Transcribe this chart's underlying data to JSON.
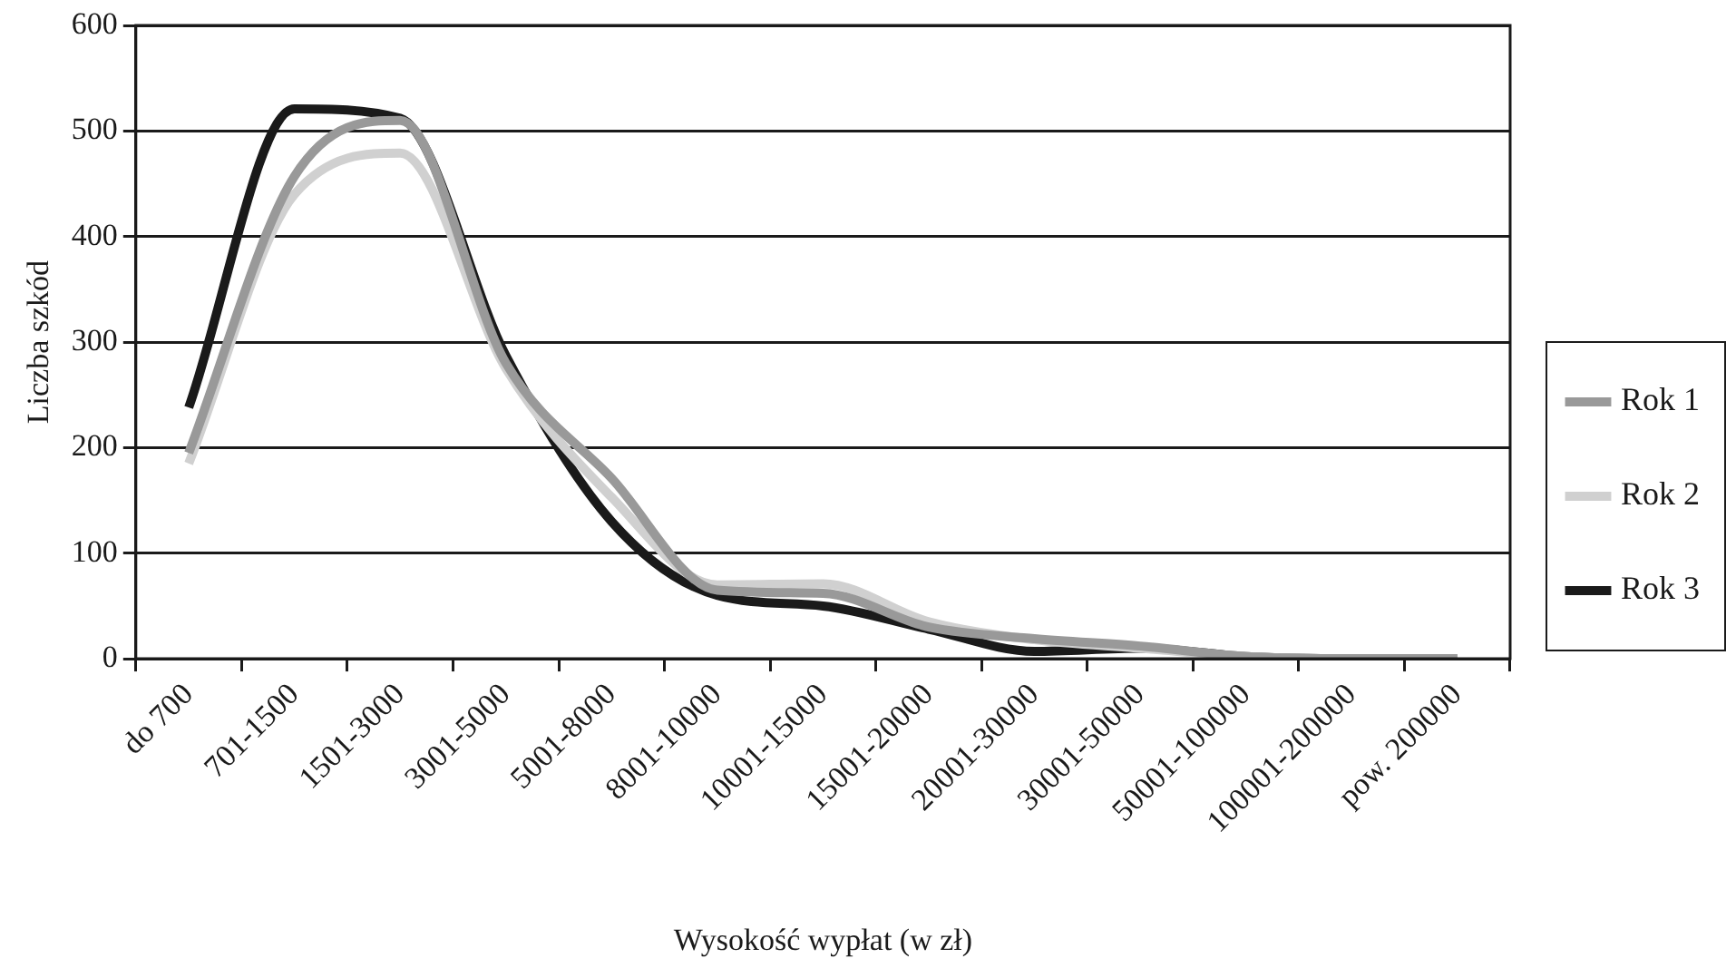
{
  "chart_data": {
    "type": "line",
    "xlabel": "Wysokość wypłat (w zł)",
    "ylabel": "Liczba szkód",
    "categories": [
      "do 700",
      "701-1500",
      "1501-3000",
      "3001-5000",
      "5001-8000",
      "8001-10000",
      "10001-15000",
      "15001-20000",
      "20001-30000",
      "30001-50000",
      "50001-100000",
      "100001-200000",
      "pow. 200000"
    ],
    "series": [
      {
        "name": "Rok 1",
        "color": "#999999",
        "values": [
          195,
          457,
          510,
          280,
          171,
          65,
          62,
          30,
          19,
          12,
          2,
          0,
          0
        ]
      },
      {
        "name": "Rok 2",
        "color": "#d0d0d0",
        "values": [
          185,
          440,
          479,
          275,
          153,
          70,
          71,
          35,
          18,
          10,
          2,
          0,
          0
        ]
      },
      {
        "name": "Rok 3",
        "color": "#1a1a1a",
        "values": [
          238,
          521,
          512,
          287,
          130,
          60,
          50,
          28,
          7,
          10,
          2,
          0,
          0
        ]
      }
    ],
    "ylim": [
      0,
      600
    ],
    "yticks": [
      0,
      100,
      200,
      300,
      400,
      500,
      600
    ],
    "grid": "y",
    "legend": "right",
    "marker": "none",
    "line_style": "solid"
  }
}
